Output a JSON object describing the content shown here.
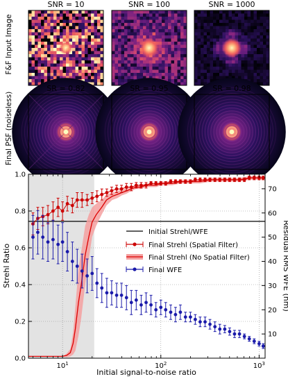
{
  "panels": {
    "top_titles": [
      "SNR = 10",
      "SNR = 100",
      "SNR = 1000"
    ],
    "bottom_titles": [
      "SR = 0.82",
      "SR = 0.95",
      "SR = 0.98"
    ],
    "top_row_label": "F&F Input Image",
    "bottom_row_label": "Final PSF (noiseless)",
    "colormap": "magma",
    "colormap_stops": [
      "#000004",
      "#2c115f",
      "#721f81",
      "#b73779",
      "#f1605d",
      "#feb078",
      "#fcfdbf"
    ]
  },
  "chart_data": {
    "type": "line",
    "xlabel": "Initial signal-to-noise ratio",
    "ylabel_left": "Strehl Ratio",
    "ylabel_right": "Residual RMS WFE (nm)",
    "xscale": "log",
    "xlim": [
      4.5,
      1150
    ],
    "ylim_left": [
      0,
      1.0
    ],
    "ylim_right": [
      0,
      76
    ],
    "x_ticks": [
      {
        "v": 10,
        "label": "10^1"
      },
      {
        "v": 100,
        "label": "10^2"
      },
      {
        "v": 1000,
        "label": "10^3"
      }
    ],
    "y_ticks_left": [
      "0.0",
      "0.2",
      "0.4",
      "0.6",
      "0.8",
      "1.0"
    ],
    "y_ticks_left_values": [
      0,
      0.2,
      0.4,
      0.6,
      0.8,
      1.0
    ],
    "y_ticks_right": [
      "10",
      "20",
      "30",
      "40",
      "50",
      "60",
      "70"
    ],
    "y_ticks_right_values": [
      10,
      20,
      30,
      40,
      50,
      60,
      70
    ],
    "shaded_region_x": [
      4.5,
      21
    ],
    "colors": {
      "strehl": "#cc0000",
      "strehl_band": "#f4a0a0",
      "wfe": "#1a1aaa",
      "initial": "#000000",
      "shade": "#e3e3e3"
    },
    "initial_strehl": 0.744,
    "legend": {
      "placement": "center-right",
      "entries": [
        "Initial Strehl/WFE",
        "Final Strehl (Spatial Filter)",
        "Final Strehl (No Spatial Filter)",
        "Final WFE"
      ]
    },
    "series": [
      {
        "name": "Final Strehl (Spatial Filter)",
        "axis": "left",
        "x": [
          5.0,
          5.6,
          6.3,
          7.1,
          8.0,
          9.0,
          10.0,
          11.2,
          12.6,
          14.1,
          15.8,
          17.8,
          20.0,
          22.4,
          25.1,
          28.2,
          31.6,
          35.5,
          39.8,
          44.7,
          50.1,
          56.2,
          63.1,
          70.8,
          79.4,
          89.1,
          100,
          112,
          126,
          141,
          158,
          178,
          200,
          224,
          251,
          282,
          316,
          355,
          398,
          447,
          501,
          562,
          631,
          708,
          794,
          891,
          1000,
          1100
        ],
        "y": [
          0.73,
          0.76,
          0.77,
          0.78,
          0.8,
          0.82,
          0.8,
          0.84,
          0.83,
          0.86,
          0.86,
          0.86,
          0.87,
          0.88,
          0.89,
          0.9,
          0.91,
          0.92,
          0.92,
          0.93,
          0.93,
          0.94,
          0.94,
          0.94,
          0.95,
          0.95,
          0.95,
          0.95,
          0.96,
          0.96,
          0.96,
          0.96,
          0.96,
          0.97,
          0.97,
          0.97,
          0.97,
          0.97,
          0.97,
          0.97,
          0.97,
          0.97,
          0.97,
          0.97,
          0.98,
          0.98,
          0.98,
          0.98
        ],
        "err": [
          0.06,
          0.06,
          0.05,
          0.05,
          0.05,
          0.05,
          0.05,
          0.04,
          0.04,
          0.04,
          0.04,
          0.03,
          0.03,
          0.03,
          0.03,
          0.02,
          0.02,
          0.02,
          0.02,
          0.02,
          0.02,
          0.015,
          0.015,
          0.015,
          0.01,
          0.01,
          0.01,
          0.01,
          0.01,
          0.01,
          0.01,
          0.01,
          0.01,
          0.01,
          0.01,
          0.01,
          0.01,
          0.01,
          0.01,
          0.01,
          0.01,
          0.01,
          0.01,
          0.01,
          0.01,
          0.01,
          0.01,
          0.01
        ]
      },
      {
        "name": "Final Strehl (No Spatial Filter)",
        "axis": "left",
        "x": [
          4.5,
          5,
          6,
          7,
          8,
          9,
          10,
          11,
          12,
          12.8,
          13.5,
          14.5,
          15.5,
          17,
          18.5,
          20,
          22,
          25,
          28,
          32,
          36,
          40,
          45,
          50,
          56,
          63,
          70,
          80,
          90,
          100,
          130,
          160,
          200,
          250,
          320,
          400,
          500,
          630,
          800,
          1000,
          1100
        ],
        "y": [
          0.01,
          0.01,
          0.01,
          0.01,
          0.01,
          0.01,
          0.01,
          0.015,
          0.03,
          0.08,
          0.16,
          0.3,
          0.4,
          0.56,
          0.66,
          0.74,
          0.78,
          0.82,
          0.86,
          0.88,
          0.89,
          0.9,
          0.91,
          0.92,
          0.93,
          0.93,
          0.94,
          0.94,
          0.94,
          0.95,
          0.95,
          0.96,
          0.96,
          0.96,
          0.97,
          0.97,
          0.97,
          0.97,
          0.98,
          0.98,
          0.98
        ],
        "band": [
          0.0,
          0.0,
          0.0,
          0.0,
          0.0,
          0.0,
          0.0,
          0.01,
          0.02,
          0.06,
          0.12,
          0.18,
          0.18,
          0.16,
          0.12,
          0.08,
          0.06,
          0.04,
          0.03,
          0.02,
          0.02,
          0.015,
          0.015,
          0.01,
          0.01,
          0.01,
          0.01,
          0.01,
          0.01,
          0.01,
          0.01,
          0.01,
          0.01,
          0.01,
          0.01,
          0.01,
          0.01,
          0.01,
          0.01,
          0.01,
          0.01
        ]
      },
      {
        "name": "Final WFE",
        "axis": "right",
        "x": [
          5.0,
          5.6,
          6.3,
          7.1,
          8.0,
          9.0,
          10.0,
          11.2,
          12.6,
          14.1,
          15.8,
          17.8,
          20.0,
          22.4,
          25.1,
          28.2,
          31.6,
          35.5,
          39.8,
          44.7,
          50.1,
          56.2,
          63.1,
          70.8,
          79.4,
          89.1,
          100,
          112,
          126,
          141,
          158,
          178,
          200,
          224,
          251,
          282,
          316,
          355,
          398,
          447,
          501,
          562,
          631,
          708,
          794,
          891,
          1000,
          1100
        ],
        "y": [
          50,
          52,
          50,
          48,
          49,
          47,
          48,
          44,
          40,
          38,
          36,
          34,
          35,
          31,
          29,
          27,
          27,
          26,
          26,
          25,
          23,
          24,
          22,
          23,
          22,
          20,
          21,
          20,
          19,
          18,
          19,
          17,
          17,
          16,
          15,
          15,
          14,
          13,
          12,
          12,
          11,
          10,
          10,
          9,
          8,
          7,
          6,
          5
        ],
        "err": [
          9,
          9,
          9,
          8,
          8,
          8,
          8,
          8,
          8,
          7,
          7,
          7,
          7,
          6,
          6,
          6,
          5,
          5,
          5,
          5,
          5,
          4,
          4,
          4,
          4,
          3,
          3,
          3,
          3,
          3,
          3,
          2,
          2,
          2,
          2,
          2,
          2,
          2,
          2,
          1.5,
          1.5,
          1.5,
          1.5,
          1,
          1,
          1,
          1,
          1
        ]
      }
    ]
  }
}
